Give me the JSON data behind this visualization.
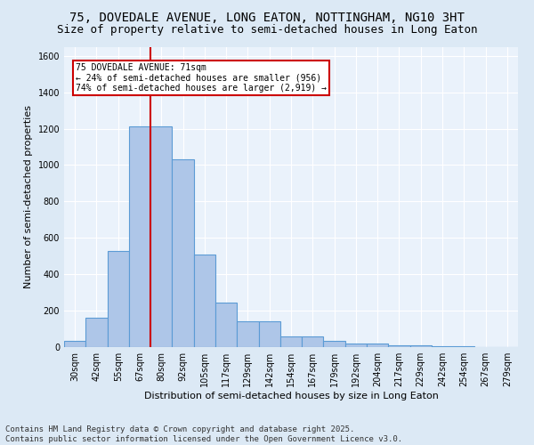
{
  "title": "75, DOVEDALE AVENUE, LONG EATON, NOTTINGHAM, NG10 3HT",
  "subtitle": "Size of property relative to semi-detached houses in Long Eaton",
  "xlabel": "Distribution of semi-detached houses by size in Long Eaton",
  "ylabel": "Number of semi-detached properties",
  "categories": [
    "30sqm",
    "42sqm",
    "55sqm",
    "67sqm",
    "80sqm",
    "92sqm",
    "105sqm",
    "117sqm",
    "129sqm",
    "142sqm",
    "154sqm",
    "167sqm",
    "179sqm",
    "192sqm",
    "204sqm",
    "217sqm",
    "229sqm",
    "242sqm",
    "254sqm",
    "267sqm",
    "279sqm"
  ],
  "bar_values": [
    35,
    160,
    530,
    1210,
    1210,
    1030,
    510,
    245,
    140,
    140,
    60,
    60,
    35,
    20,
    20,
    12,
    8,
    5,
    3,
    2,
    0
  ],
  "bar_color": "#aec6e8",
  "bar_edge_color": "#5b9bd5",
  "annotation_text": "75 DOVEDALE AVENUE: 71sqm\n← 24% of semi-detached houses are smaller (956)\n74% of semi-detached houses are larger (2,919) →",
  "annotation_box_color": "#ffffff",
  "annotation_box_edge": "#cc0000",
  "vline_color": "#cc0000",
  "vline_x_index": 3.5,
  "ylim": [
    0,
    1650
  ],
  "yticks": [
    0,
    200,
    400,
    600,
    800,
    1000,
    1200,
    1400,
    1600
  ],
  "footer": "Contains HM Land Registry data © Crown copyright and database right 2025.\nContains public sector information licensed under the Open Government Licence v3.0.",
  "bg_color": "#dce9f5",
  "plot_bg_color": "#eaf2fb",
  "grid_color": "#ffffff",
  "title_fontsize": 10,
  "subtitle_fontsize": 9,
  "label_fontsize": 8,
  "tick_fontsize": 7,
  "footer_fontsize": 6.5
}
